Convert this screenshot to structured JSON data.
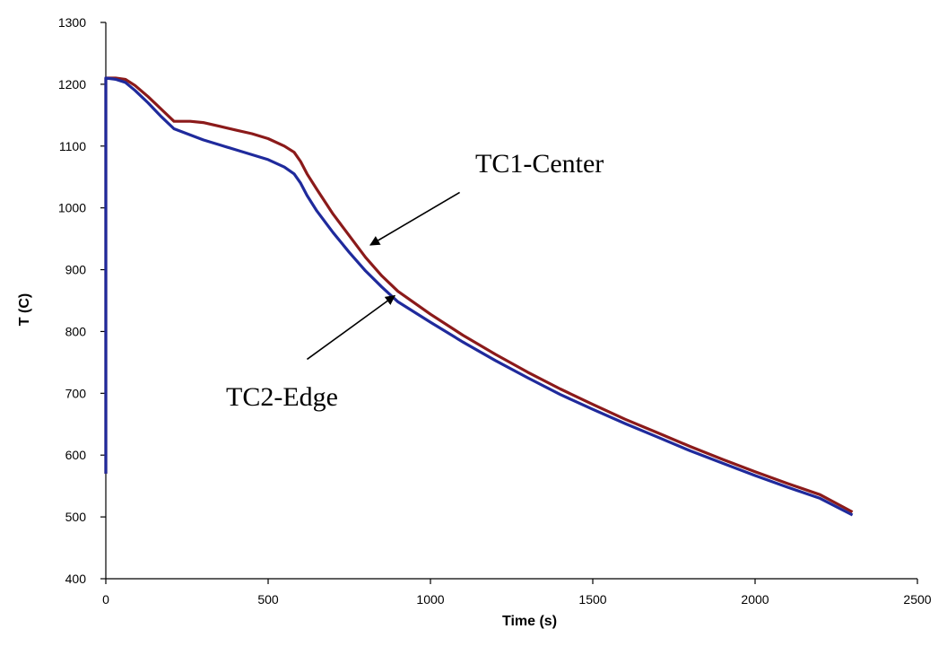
{
  "chart_data": {
    "type": "line",
    "title": "",
    "xlabel": "Time (s)",
    "ylabel": "T (C)",
    "xlim": [
      0,
      2500
    ],
    "ylim": [
      400,
      1300
    ],
    "xticks": [
      0,
      500,
      1000,
      1500,
      2000,
      2500
    ],
    "yticks": [
      400,
      500,
      600,
      700,
      800,
      900,
      1000,
      1100,
      1200,
      1300
    ],
    "grid": false,
    "legend": "none",
    "series": [
      {
        "name": "TC1-Center",
        "color": "#8b1a1a",
        "x": [
          0,
          30,
          60,
          90,
          130,
          170,
          210,
          260,
          300,
          350,
          400,
          450,
          500,
          550,
          580,
          600,
          620,
          650,
          700,
          750,
          800,
          850,
          900,
          1000,
          1100,
          1200,
          1300,
          1400,
          1500,
          1600,
          1700,
          1800,
          1900,
          2000,
          2100,
          2200,
          2300
        ],
        "y": [
          1210,
          1210,
          1208,
          1198,
          1180,
          1160,
          1140,
          1140,
          1138,
          1132,
          1126,
          1120,
          1112,
          1100,
          1090,
          1075,
          1055,
          1030,
          990,
          955,
          920,
          890,
          865,
          828,
          794,
          763,
          734,
          707,
          682,
          658,
          636,
          614,
          593,
          573,
          554,
          536,
          508
        ]
      },
      {
        "name": "TC2-Edge",
        "color": "#1f2a9c",
        "x": [
          0,
          30,
          60,
          90,
          130,
          170,
          210,
          260,
          300,
          350,
          400,
          450,
          500,
          550,
          580,
          600,
          620,
          650,
          700,
          750,
          800,
          850,
          900,
          1000,
          1100,
          1200,
          1300,
          1400,
          1500,
          1600,
          1700,
          1800,
          1900,
          2000,
          2100,
          2200,
          2300
        ],
        "y": [
          1210,
          1208,
          1203,
          1190,
          1170,
          1148,
          1128,
          1118,
          1110,
          1102,
          1094,
          1086,
          1078,
          1066,
          1055,
          1040,
          1020,
          995,
          960,
          928,
          898,
          872,
          848,
          815,
          783,
          753,
          725,
          698,
          674,
          651,
          629,
          607,
          587,
          567,
          548,
          530,
          503
        ]
      }
    ],
    "annotations": [
      {
        "text": "TC1-Center",
        "arrow_from": [
          1090,
          1025
        ],
        "arrow_to": [
          815,
          940
        ]
      },
      {
        "text": "TC2-Edge",
        "arrow_from": [
          620,
          755
        ],
        "arrow_to": [
          890,
          858
        ]
      }
    ]
  }
}
